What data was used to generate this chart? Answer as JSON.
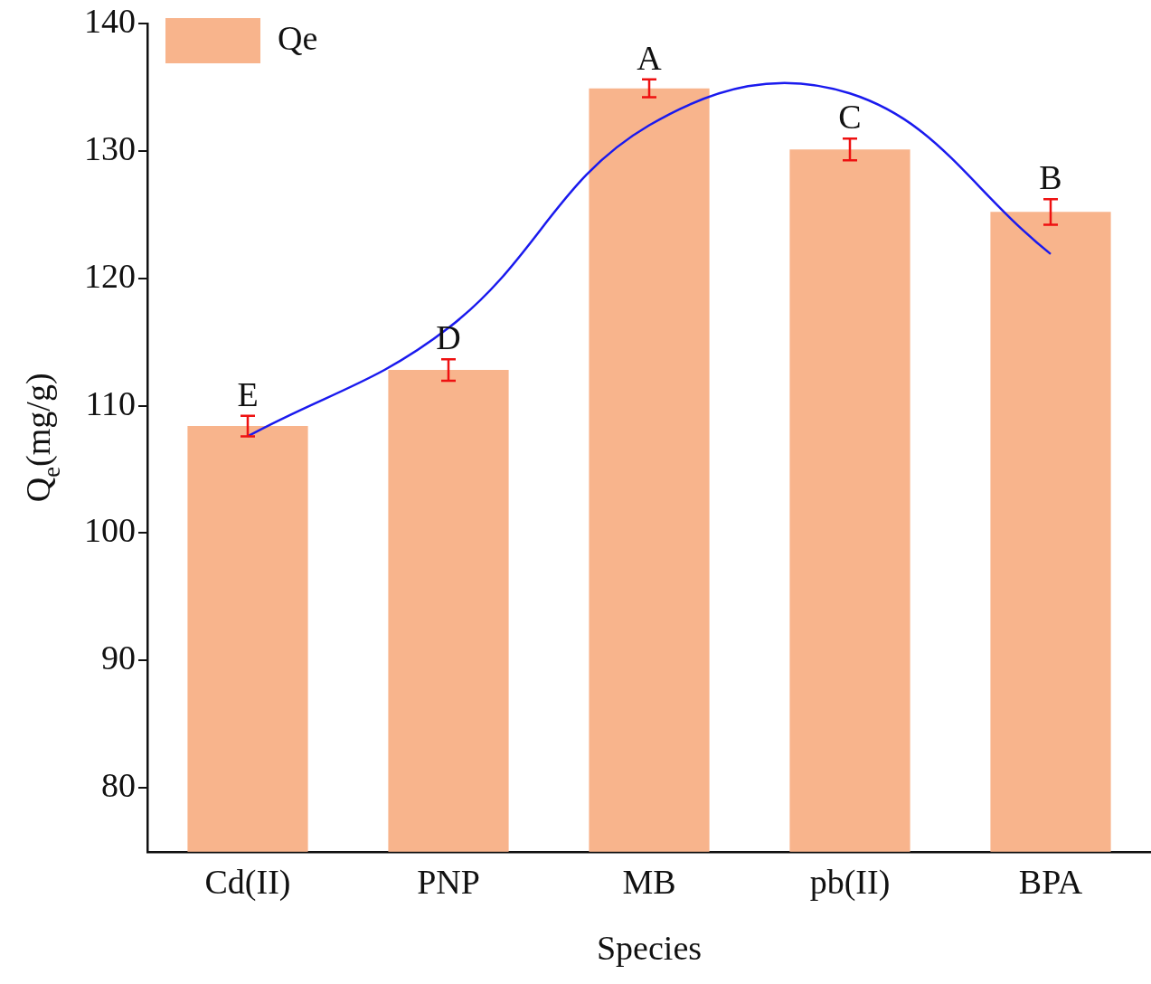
{
  "chart_data": {
    "type": "bar",
    "xlabel": "Species",
    "ylabel": "Q$_{e}$(mg/g)",
    "categories": [
      "Cd(II)",
      "PNP",
      "MB",
      "pb(II)",
      "BPA"
    ],
    "series": [
      {
        "name": "Qe",
        "color": "#f8b48c",
        "values": [
          108.4,
          112.8,
          134.9,
          130.1,
          125.2
        ],
        "errors": [
          0.8,
          0.85,
          0.7,
          0.85,
          1.0
        ]
      },
      {
        "type": "line",
        "color": "#1a1aee",
        "values": [
          107.6,
          116.1,
          132.0,
          134.5,
          121.9
        ],
        "marker": "none",
        "line_style": "solid"
      }
    ],
    "ylim": [
      75,
      140
    ],
    "yticks": [
      80,
      90,
      100,
      110,
      120,
      130,
      140
    ],
    "annotations": [
      {
        "text": "E",
        "x": "Cd(II)",
        "y": 109.2
      },
      {
        "text": "D",
        "x": "PNP",
        "y": 113.65
      },
      {
        "text": "A",
        "x": "MB",
        "y": 135.6
      },
      {
        "text": "C",
        "x": "pb(II)",
        "y": 130.95
      },
      {
        "text": "B",
        "x": "BPA",
        "y": 126.2
      }
    ],
    "legend": "top left",
    "grid": false
  }
}
